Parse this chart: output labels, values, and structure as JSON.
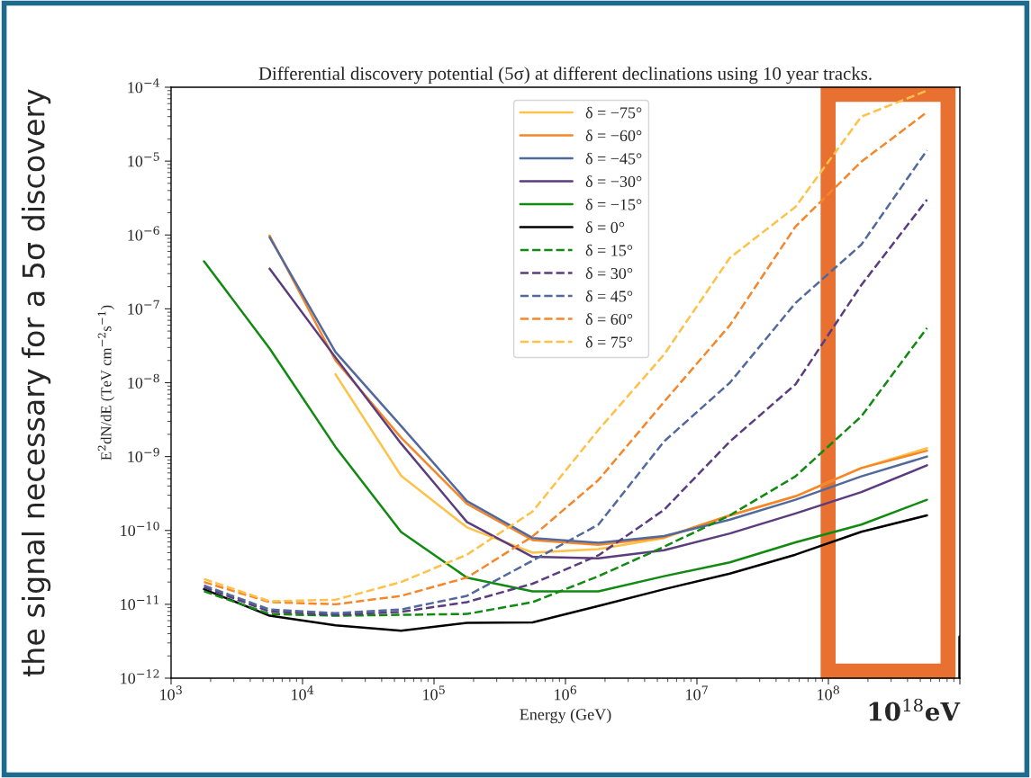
{
  "chart_data": {
    "type": "line",
    "title": "Differential discovery potential (5σ) at different declinations using 10 year tracks.",
    "xlabel": "Energy (GeV)",
    "ylabel": "E$^{2}$dN/dE (TeV cm$^{−2}$s$^{−1}$)",
    "annotations": [
      "the signal necessary for a 5σ discovery",
      "10$^{18}$eV"
    ],
    "x": [
      1780,
      5620,
      17800,
      56200,
      178000,
      562000,
      1780000,
      5620000,
      17800000,
      56200000,
      178000000,
      562000000
    ],
    "log": "xy",
    "legend": "top",
    "grid": false,
    "xlim": [
      1000,
      1000000000
    ],
    "ylim": [
      1e-12,
      0.0001
    ],
    "xticks": [
      {
        "value": 1000,
        "label": "10$^{3}$"
      },
      {
        "value": 10000,
        "label": "10$^{4}$"
      },
      {
        "value": 100000,
        "label": "10$^{5}$"
      },
      {
        "value": 1000000,
        "label": "10$^{6}$"
      },
      {
        "value": 10000000,
        "label": "10$^{7}$"
      },
      {
        "value": 100000000,
        "label": "10$^{8}$"
      },
      {
        "value": 1000000000,
        "label": null
      }
    ],
    "yticks": [
      {
        "value": 1e-12,
        "label": "10$^{−12}$"
      },
      {
        "value": 1e-11,
        "label": "10$^{−11}$"
      },
      {
        "value": 1e-10,
        "label": "10$^{−10}$"
      },
      {
        "value": 1e-09,
        "label": "10$^{−9}$"
      },
      {
        "value": 1e-08,
        "label": "10$^{−8}$"
      },
      {
        "value": 1e-07,
        "label": "10$^{−7}$"
      },
      {
        "value": 1e-06,
        "label": "10$^{−6}$"
      },
      {
        "value": 1e-05,
        "label": "10$^{−5}$"
      },
      {
        "value": 0.0001,
        "label": "10$^{−4}$"
      }
    ],
    "series": [
      {
        "name": "δ = −75°",
        "color": "#fcc24a",
        "line_style": "solid",
        "values": [
          null,
          null,
          1.3e-08,
          5.5e-10,
          1.1e-10,
          5e-11,
          5.6e-11,
          7.9e-11,
          1.6e-10,
          2.9e-10,
          7e-10,
          1.3e-09
        ]
      },
      {
        "name": "δ = −60°",
        "color": "#f5862a",
        "line_style": "solid",
        "values": [
          null,
          9.8e-07,
          2e-08,
          1.8e-09,
          2.3e-10,
          7.4e-11,
          6.4e-11,
          8.1e-11,
          1.6e-10,
          2.9e-10,
          7e-10,
          1.2e-09
        ]
      },
      {
        "name": "δ = −45°",
        "color": "#52699c",
        "line_style": "solid",
        "values": [
          null,
          9.3e-07,
          2.6e-08,
          2.6e-09,
          2.5e-10,
          7.9e-11,
          6.8e-11,
          8.4e-11,
          1.4e-10,
          2.6e-10,
          5.4e-10,
          1e-09
        ]
      },
      {
        "name": "δ = −30°",
        "color": "#5a3c7f",
        "line_style": "solid",
        "values": [
          null,
          3.5e-07,
          2.2e-08,
          1.5e-09,
          1.3e-10,
          4.4e-11,
          4.2e-11,
          5.4e-11,
          9.1e-11,
          1.7e-10,
          3.3e-10,
          7.6e-10
        ]
      },
      {
        "name": "δ = −15°",
        "color": "#118a11",
        "line_style": "solid",
        "values": [
          4.4e-07,
          2.9e-08,
          1.35e-09,
          9.5e-11,
          2.3e-11,
          1.5e-11,
          1.5e-11,
          2.4e-11,
          3.7e-11,
          6.9e-11,
          1.2e-10,
          2.6e-10
        ]
      },
      {
        "name": "δ = 0°",
        "color": "#000000",
        "line_style": "solid",
        "values": [
          1.6e-11,
          7e-12,
          5.2e-12,
          4.4e-12,
          5.6e-12,
          5.7e-12,
          9.5e-12,
          1.6e-11,
          2.6e-11,
          4.7e-11,
          9.6e-11,
          1.6e-10
        ]
      },
      {
        "name": "δ = 15°",
        "color": "#118a11",
        "line_style": "dashed",
        "values": [
          1.5e-11,
          7.4e-12,
          7e-12,
          7.2e-12,
          7.4e-12,
          1.07e-11,
          2.4e-11,
          6e-11,
          1.6e-10,
          5.4e-10,
          3.5e-09,
          5.5e-08
        ]
      },
      {
        "name": "δ = 30°",
        "color": "#5a3c7f",
        "line_style": "dashed",
        "values": [
          1.7e-11,
          8e-12,
          7.2e-12,
          7.9e-12,
          1.07e-11,
          1.9e-11,
          4.6e-11,
          1.9e-10,
          1.6e-09,
          9.5e-09,
          2.1e-07,
          3e-06
        ]
      },
      {
        "name": "δ = 45°",
        "color": "#52699c",
        "line_style": "dashed",
        "values": [
          1.8e-11,
          8.5e-12,
          7.6e-12,
          8.5e-12,
          1.3e-11,
          3.9e-11,
          1.2e-10,
          1.6e-09,
          1e-08,
          1.2e-07,
          7.4e-07,
          1.4e-05
        ]
      },
      {
        "name": "δ = 60°",
        "color": "#f5862a",
        "line_style": "dashed",
        "values": [
          2e-11,
          1.07e-11,
          1e-11,
          1.3e-11,
          2.3e-11,
          8.3e-11,
          4.8e-10,
          5.5e-09,
          6e-08,
          1.3e-06,
          9.8e-06,
          4.6e-05
        ]
      },
      {
        "name": "δ = 75°",
        "color": "#fcc24a",
        "line_style": "dashed",
        "values": [
          2.2e-11,
          1.1e-11,
          1.15e-11,
          2e-11,
          4.7e-11,
          1.8e-10,
          2.3e-09,
          2.4e-08,
          4.9e-07,
          2.4e-06,
          4e-05,
          9e-05
        ]
      }
    ]
  }
}
